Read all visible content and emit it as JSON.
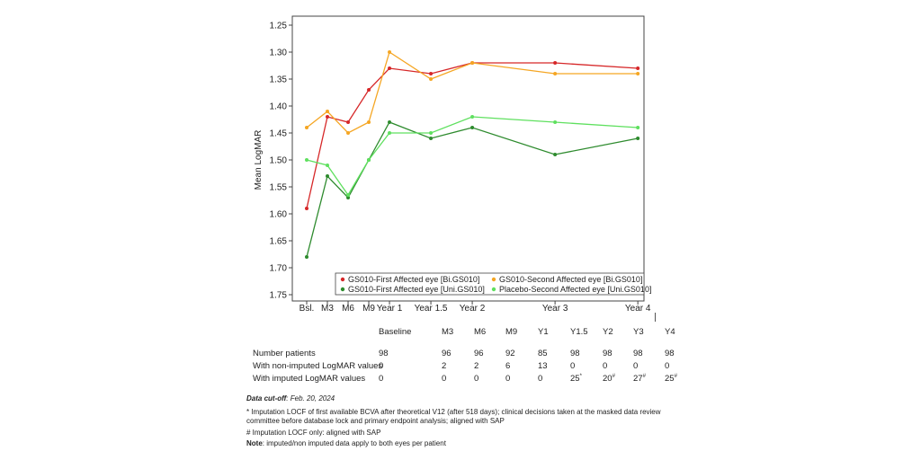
{
  "chart_data": {
    "type": "line",
    "title": "",
    "xlabel": "",
    "ylabel": "Mean LogMAR",
    "ylim": [
      1.75,
      1.25
    ],
    "y_inverted": true,
    "yticks": [
      "1.25",
      "1.30",
      "1.35",
      "1.40",
      "1.45",
      "1.50",
      "1.55",
      "1.60",
      "1.65",
      "1.70",
      "1.75"
    ],
    "x_labels": [
      "Bsl.",
      "M3",
      "M6",
      "M9",
      "Year 1",
      "Year 1.5",
      "Year 2",
      "Year 3",
      "Year 4"
    ],
    "x_months": [
      0,
      3,
      6,
      9,
      12,
      18,
      24,
      36,
      48
    ],
    "grid": false,
    "legend_position": "bottom-right",
    "series": [
      {
        "name": "GS010-First Affected eye [Bi.GS010]",
        "color": "#d62728",
        "values": [
          1.59,
          1.42,
          1.43,
          1.37,
          1.33,
          1.34,
          1.32,
          1.32,
          1.33
        ]
      },
      {
        "name": "GS010-Second Affected eye [Bi.GS010]",
        "color": "#f5a623",
        "values": [
          1.44,
          1.41,
          1.45,
          1.43,
          1.3,
          1.35,
          1.32,
          1.34,
          1.34
        ]
      },
      {
        "name": "GS010-First Affected eye [Uni.GS010]",
        "color": "#2e8b2e",
        "values": [
          1.68,
          1.53,
          1.57,
          1.5,
          1.43,
          1.46,
          1.44,
          1.49,
          1.46
        ]
      },
      {
        "name": "Placebo-Second Affected eye [Uni.GS010]",
        "color": "#5fe05f",
        "values": [
          1.5,
          1.51,
          1.565,
          1.5,
          1.45,
          1.45,
          1.42,
          1.43,
          1.44
        ]
      }
    ]
  },
  "table": {
    "headers": [
      "Baseline",
      "M3",
      "M6",
      "M9",
      "Y1",
      "Y1.5",
      "Y2",
      "Y3",
      "Y4"
    ],
    "rows": [
      {
        "label": "Number patients",
        "values": [
          "98",
          "96",
          "96",
          "92",
          "85",
          "98",
          "98",
          "98",
          "98"
        ],
        "marks": [
          "",
          "",
          "",
          "",
          "",
          "",
          "",
          "",
          ""
        ]
      },
      {
        "label": "With non-imputed LogMAR values",
        "values": [
          "0",
          "2",
          "2",
          "6",
          "13",
          "0",
          "0",
          "0",
          "0"
        ],
        "marks": [
          "",
          "",
          "",
          "",
          "",
          "",
          "",
          "",
          ""
        ]
      },
      {
        "label": "With imputed LogMAR values",
        "values": [
          "0",
          "0",
          "0",
          "0",
          "0",
          "25",
          "20",
          "27",
          "25"
        ],
        "marks": [
          "",
          "",
          "",
          "",
          "",
          "*",
          "#",
          "#",
          "#"
        ]
      }
    ]
  },
  "notes": {
    "cutoff_label": "Data cut-off",
    "cutoff_value": ": Feb. 20, 2024",
    "star_line1": "* Imputation LOCF of first available BCVA after theoretical V12 (after 518 days); clinical decisions taken at the masked data review",
    "star_line2": "committee before database lock and primary endpoint analysis; aligned with SAP",
    "hash_line": "# Imputation LOCF only: aligned with SAP",
    "note_label": "Note",
    "note_text": ": imputed/non imputed data apply to both eyes per patient"
  }
}
